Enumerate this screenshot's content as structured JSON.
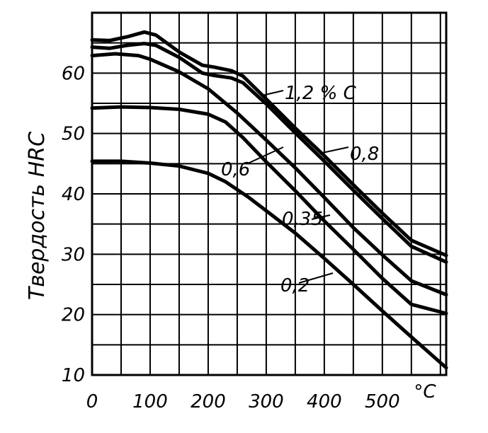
{
  "chart_data": {
    "type": "line",
    "title": "",
    "xlabel": "",
    "ylabel": "Твердость HRC",
    "x_unit": "°C",
    "xlim": [
      0,
      610
    ],
    "ylim": [
      10,
      70
    ],
    "x_ticks": [
      0,
      100,
      200,
      300,
      400,
      500
    ],
    "x_tick_labels": [
      "0",
      "100",
      "200",
      "300",
      "400",
      "500"
    ],
    "y_ticks": [
      10,
      20,
      30,
      40,
      50,
      60
    ],
    "y_tick_labels": [
      "10",
      "20",
      "30",
      "40",
      "50",
      "60"
    ],
    "grid": true,
    "series": [
      {
        "name": "1,2 % C",
        "x": [
          0,
          30,
          60,
          90,
          110,
          150,
          190,
          210,
          240,
          260,
          300,
          350,
          400,
          450,
          500,
          550,
          610
        ],
        "y": [
          65.5,
          65.4,
          66.0,
          66.8,
          66.3,
          63.5,
          61.3,
          61.0,
          60.4,
          59.5,
          55.7,
          50.9,
          46.3,
          41.5,
          36.8,
          32.3,
          29.8
        ]
      },
      {
        "name": "0,8",
        "x": [
          0,
          30,
          60,
          90,
          110,
          150,
          190,
          210,
          240,
          260,
          300,
          350,
          400,
          450,
          500,
          550,
          610
        ],
        "y": [
          64.3,
          64.1,
          64.6,
          64.9,
          64.6,
          62.6,
          60.0,
          59.6,
          59.2,
          58.4,
          54.9,
          50.1,
          45.4,
          40.6,
          35.9,
          31.3,
          28.7
        ]
      },
      {
        "name": "0,6",
        "x": [
          0,
          40,
          80,
          100,
          150,
          200,
          250,
          300,
          350,
          400,
          450,
          500,
          550,
          610
        ],
        "y": [
          62.9,
          63.2,
          62.9,
          62.3,
          60.2,
          57.4,
          53.4,
          48.9,
          44.3,
          39.4,
          34.4,
          29.9,
          25.6,
          23.3
        ]
      },
      {
        "name": "0,35",
        "x": [
          0,
          50,
          100,
          150,
          200,
          230,
          260,
          300,
          350,
          400,
          450,
          500,
          550,
          610
        ],
        "y": [
          54.2,
          54.4,
          54.3,
          54.0,
          53.2,
          51.9,
          49.3,
          45.3,
          40.5,
          35.5,
          30.8,
          26.0,
          21.7,
          20.2
        ]
      },
      {
        "name": "0,2",
        "x": [
          0,
          50,
          100,
          150,
          200,
          230,
          270,
          300,
          350,
          400,
          450,
          500,
          550,
          610
        ],
        "y": [
          45.4,
          45.4,
          45.1,
          44.6,
          43.4,
          42.0,
          39.4,
          37.2,
          33.5,
          29.3,
          25.0,
          20.6,
          16.3,
          11.2
        ]
      }
    ]
  }
}
